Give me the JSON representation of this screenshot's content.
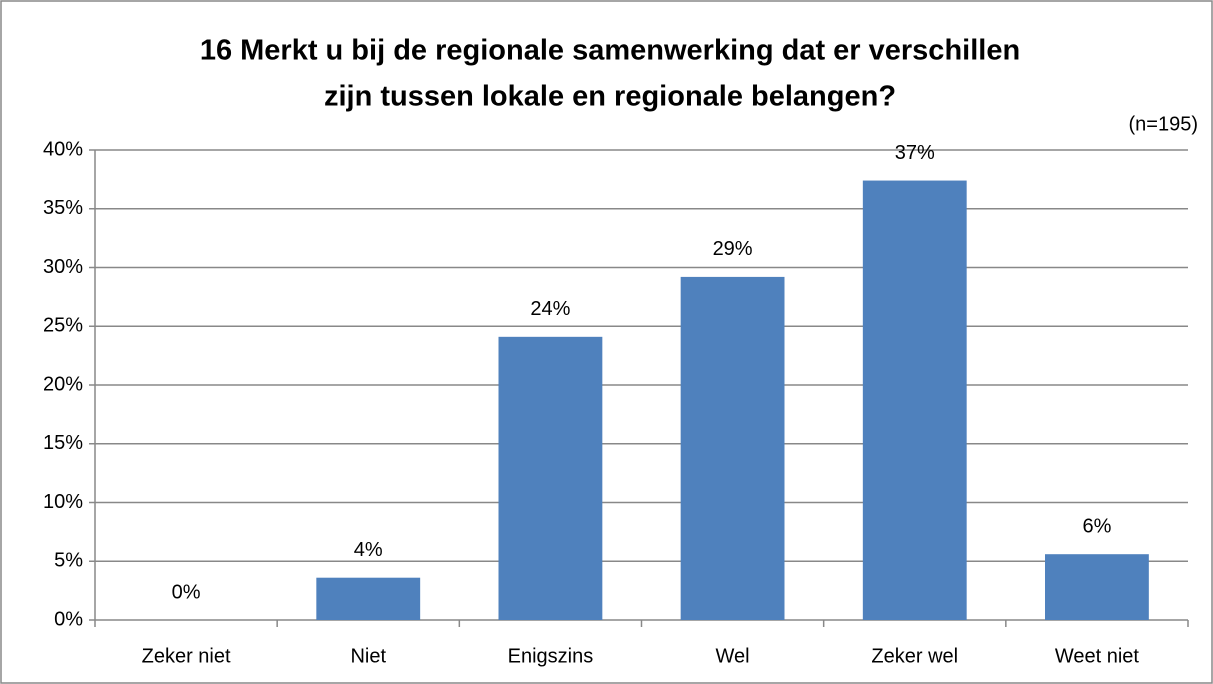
{
  "chart_data": {
    "type": "bar",
    "title": [
      "16 Merkt u bij de regionale samenwerking dat er verschillen",
      "zijn tussen lokale en regionale belangen?"
    ],
    "annotation": "(n=195)",
    "categories": [
      "Zeker niet",
      "Niet",
      "Enigszins",
      "Wel",
      "Zeker wel",
      "Weet niet"
    ],
    "values": [
      0,
      3.6,
      24.1,
      29.2,
      37.4,
      5.6
    ],
    "value_labels": [
      "0%",
      "4%",
      "24%",
      "29%",
      "37%",
      "6%"
    ],
    "color": "#4f81bd",
    "ylim": [
      0,
      40
    ],
    "yticks": [
      {
        "value": 0,
        "label": "0%"
      },
      {
        "value": 5,
        "label": "5%"
      },
      {
        "value": 10,
        "label": "10%"
      },
      {
        "value": 15,
        "label": "15%"
      },
      {
        "value": 20,
        "label": "20%"
      },
      {
        "value": 25,
        "label": "25%"
      },
      {
        "value": 30,
        "label": "30%"
      },
      {
        "value": 35,
        "label": "35%"
      },
      {
        "value": 40,
        "label": "40%"
      }
    ],
    "grid": true
  }
}
